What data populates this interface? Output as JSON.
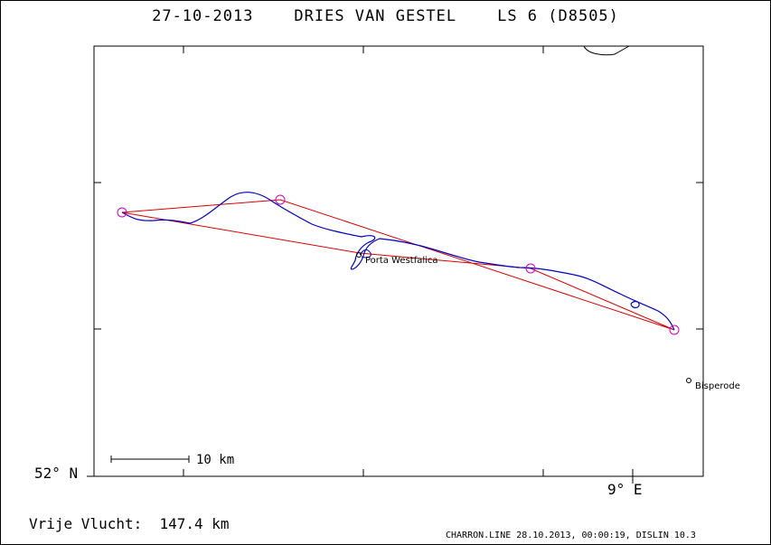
{
  "title": "27-10-2013    DRIES VAN GESTEL    LS 6 (D8505)",
  "lat_label": "52° N",
  "lon_label": "9° E",
  "scale_label": "10 km",
  "free_flight": "Vrije Vlucht:  147.4 km",
  "footer": "CHARRON.LINE 28.10.2013, 00:00:19, DISLIN 10.3",
  "places": [
    {
      "name": "Porta Westfalica"
    },
    {
      "name": "Bisperode"
    }
  ],
  "colors": {
    "track": "#0000cc",
    "task": "#dd0000",
    "turnpoint": "#cc00cc",
    "frame": "#000000"
  }
}
